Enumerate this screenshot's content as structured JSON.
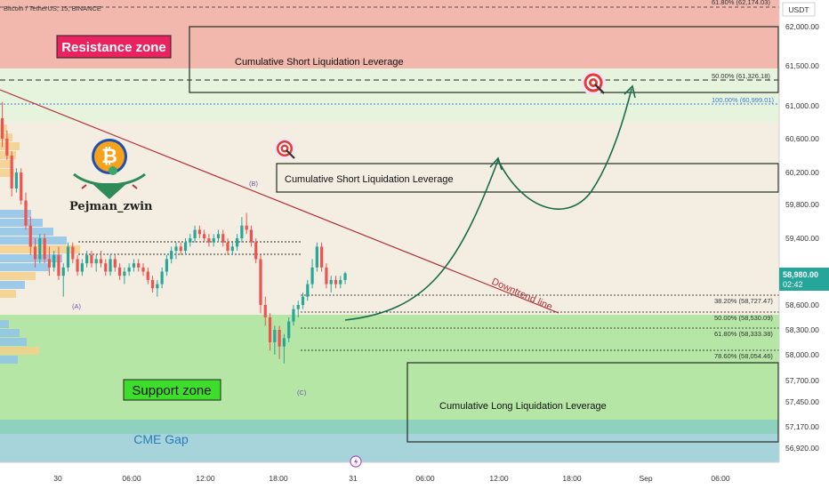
{
  "symbol_title": "Bitcoin / TetherUS, 15, BINANCE",
  "currency": "USDT",
  "author": "Pejman_zwin",
  "current_price": "58,980.00",
  "countdown": "02:42",
  "labels": {
    "resistance": "Resistance zone",
    "support": "Support zone",
    "cme_gap": "CME Gap",
    "downtrend": "Downtrend line",
    "short_liq": "Cumulative Short Liquidation Leverage",
    "long_liq": "Cumulative Long Liquidation Leverage"
  },
  "colors": {
    "resistance_zone": "#f2b8ad",
    "support_zone": "#b5e6a6",
    "cme_gap": "#a6d4da",
    "up_candle": "#27a69a",
    "down_candle": "#ee5350",
    "trend_line": "#b2333a",
    "arrow": "#1b6b4b",
    "price_badge": "#26a69a"
  },
  "chart_data": {
    "type": "candlestick",
    "title": "Bitcoin / TetherUS, 15, BINANCE",
    "y_axis_ticks": [
      "62,000.00",
      "61,500.00",
      "61,000.00",
      "60,600.00",
      "60,200.00",
      "59,800.00",
      "59,400.00",
      "58,600.00",
      "58,300.00",
      "58,000.00",
      "57,700.00",
      "57,450.00",
      "57,170.00",
      "56,920.00"
    ],
    "x_axis_ticks": [
      "30",
      "06:00",
      "12:00",
      "18:00",
      "31",
      "06:00",
      "12:00",
      "18:00",
      "Sep",
      "06:00"
    ],
    "fib_levels": [
      {
        "label": "61.80% (62,174.03)",
        "price": 62174.03
      },
      {
        "label": "50.00% (61,326.18)",
        "price": 61326.18
      },
      {
        "label": "100.00% (60,999.01)",
        "price": 60999.01
      },
      {
        "label": "38.20% (58,727.47)",
        "price": 58727.47
      },
      {
        "label": "50.00% (58,530.09)",
        "price": 58530.09
      },
      {
        "label": "61.80% (58,333.38)",
        "price": 58333.38
      },
      {
        "label": "78.60% (58,054.46)",
        "price": 58054.46
      }
    ],
    "wave_labels": [
      "(A)",
      "(B)",
      "(C)"
    ],
    "ohlc": [
      [
        60850,
        61050,
        60500,
        60600
      ],
      [
        60600,
        60700,
        60350,
        60400
      ],
      [
        60400,
        60450,
        59900,
        60000
      ],
      [
        60000,
        60250,
        59950,
        60200
      ],
      [
        60200,
        60250,
        59800,
        59850
      ],
      [
        59850,
        59950,
        59500,
        59550
      ],
      [
        59550,
        59650,
        59200,
        59300
      ],
      [
        59300,
        59400,
        59050,
        59150
      ],
      [
        59150,
        59450,
        59100,
        59400
      ],
      [
        59400,
        59450,
        59100,
        59150
      ],
      [
        59150,
        59300,
        58950,
        59050
      ],
      [
        59050,
        59250,
        59000,
        59200
      ],
      [
        59200,
        59300,
        58900,
        58950
      ],
      [
        58950,
        59100,
        58700,
        59050
      ],
      [
        59050,
        59350,
        59000,
        59300
      ],
      [
        59300,
        59350,
        59100,
        59150
      ],
      [
        59150,
        59200,
        58950,
        59000
      ],
      [
        59000,
        59150,
        58950,
        59100
      ],
      [
        59100,
        59250,
        59050,
        59200
      ],
      [
        59200,
        59250,
        59050,
        59100
      ],
      [
        59100,
        59200,
        59000,
        59150
      ],
      [
        59150,
        59250,
        59050,
        59100
      ],
      [
        59100,
        59150,
        58950,
        59000
      ],
      [
        59000,
        59200,
        58950,
        59150
      ],
      [
        59150,
        59200,
        59000,
        59050
      ],
      [
        59050,
        59100,
        58900,
        58950
      ],
      [
        58950,
        59050,
        58850,
        59000
      ],
      [
        59000,
        59100,
        58950,
        59050
      ],
      [
        59050,
        59150,
        59000,
        59100
      ],
      [
        59100,
        59150,
        59000,
        59050
      ],
      [
        59050,
        59100,
        58950,
        59000
      ],
      [
        59000,
        59050,
        58850,
        58900
      ],
      [
        58900,
        58950,
        58750,
        58800
      ],
      [
        58800,
        58900,
        58700,
        58850
      ],
      [
        58850,
        59050,
        58800,
        59000
      ],
      [
        59000,
        59200,
        58950,
        59150
      ],
      [
        59150,
        59300,
        59100,
        59250
      ],
      [
        59250,
        59350,
        59150,
        59300
      ],
      [
        59300,
        59350,
        59200,
        59250
      ],
      [
        59250,
        59400,
        59200,
        59350
      ],
      [
        59350,
        59450,
        59300,
        59400
      ],
      [
        59400,
        59550,
        59350,
        59500
      ],
      [
        59500,
        59550,
        59400,
        59450
      ],
      [
        59450,
        59500,
        59350,
        59400
      ],
      [
        59400,
        59450,
        59300,
        59350
      ],
      [
        59350,
        59450,
        59300,
        59400
      ],
      [
        59400,
        59500,
        59350,
        59450
      ],
      [
        59450,
        59500,
        59300,
        59350
      ],
      [
        59350,
        59400,
        59200,
        59250
      ],
      [
        59250,
        59350,
        59200,
        59300
      ],
      [
        59300,
        59450,
        59250,
        59400
      ],
      [
        59400,
        59650,
        59350,
        59550
      ],
      [
        59550,
        59700,
        59450,
        59500
      ],
      [
        59500,
        59550,
        59300,
        59350
      ],
      [
        59350,
        59400,
        59100,
        59150
      ],
      [
        59150,
        59200,
        58500,
        58600
      ],
      [
        58600,
        58700,
        58350,
        58450
      ],
      [
        58450,
        58500,
        58050,
        58150
      ],
      [
        58150,
        58350,
        58000,
        58300
      ],
      [
        58300,
        58350,
        57950,
        58100
      ],
      [
        58100,
        58250,
        57900,
        58200
      ],
      [
        58200,
        58450,
        58150,
        58400
      ],
      [
        58400,
        58600,
        58350,
        58550
      ],
      [
        58550,
        58650,
        58450,
        58600
      ],
      [
        58600,
        58750,
        58550,
        58700
      ],
      [
        58700,
        58900,
        58650,
        58850
      ],
      [
        58850,
        59150,
        58800,
        59050
      ],
      [
        59050,
        59350,
        59000,
        59300
      ],
      [
        59300,
        59350,
        59000,
        59050
      ],
      [
        59050,
        59100,
        58800,
        58850
      ],
      [
        58850,
        58950,
        58750,
        58900
      ],
      [
        58900,
        58950,
        58800,
        58850
      ],
      [
        58850,
        58950,
        58800,
        58900
      ],
      [
        58900,
        59000,
        58850,
        58980
      ]
    ]
  }
}
